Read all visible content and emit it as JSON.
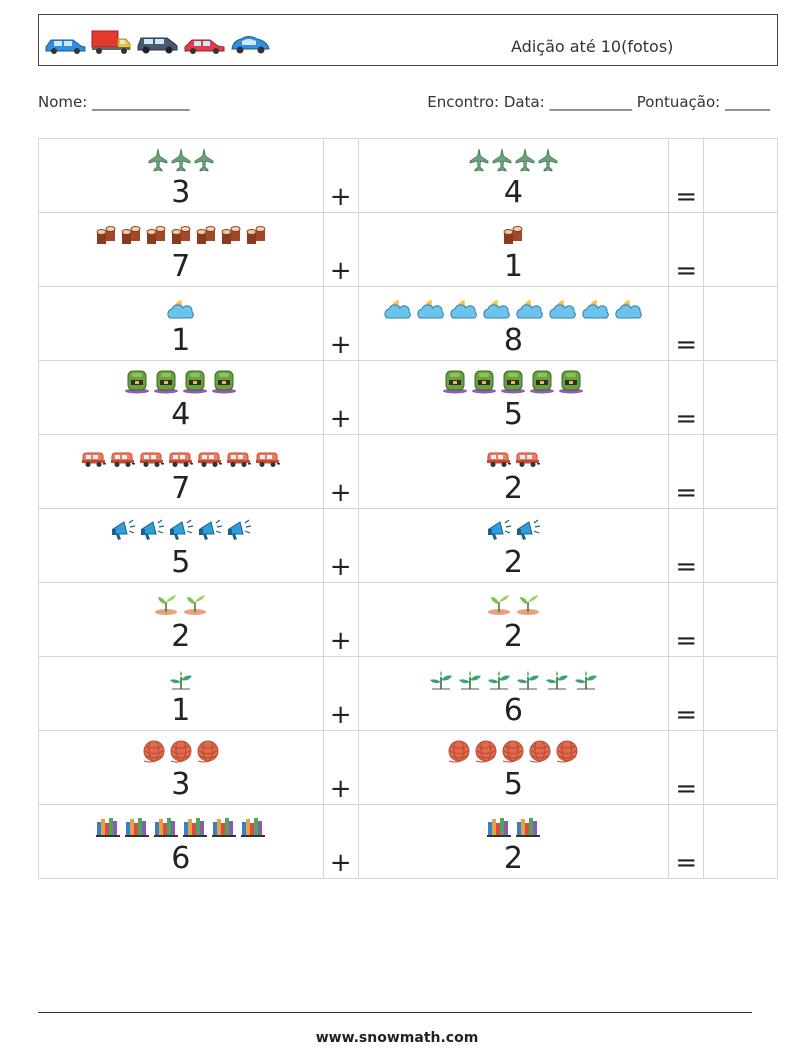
{
  "header": {
    "title": "Adição até 10(fotos)",
    "vehicles": [
      "blue-car-icon",
      "delivery-truck-icon",
      "dark-suv-icon",
      "red-car-icon",
      "blue-beetle-icon"
    ]
  },
  "info": {
    "name_label": "Nome: _____________",
    "meta_label": "Encontro: Data: ___________  Pontuação: ______"
  },
  "problems": [
    {
      "a": 3,
      "b": 4,
      "icon": "jet-plane-icon"
    },
    {
      "a": 7,
      "b": 1,
      "icon": "logs-icon"
    },
    {
      "a": 1,
      "b": 8,
      "icon": "cloud-moon-icon"
    },
    {
      "a": 4,
      "b": 5,
      "icon": "backpack-icon"
    },
    {
      "a": 7,
      "b": 2,
      "icon": "camper-van-icon"
    },
    {
      "a": 5,
      "b": 2,
      "icon": "megaphone-icon"
    },
    {
      "a": 2,
      "b": 2,
      "icon": "sprout-icon"
    },
    {
      "a": 1,
      "b": 6,
      "icon": "seedling-icon"
    },
    {
      "a": 3,
      "b": 5,
      "icon": "yarn-ball-icon"
    },
    {
      "a": 6,
      "b": 2,
      "icon": "books-icon"
    }
  ],
  "operators": {
    "plus": "+",
    "equals": "="
  },
  "footer": {
    "url": "www.snowmath.com"
  },
  "colors": {
    "border": "#d6d6d6",
    "text": "#222222"
  }
}
